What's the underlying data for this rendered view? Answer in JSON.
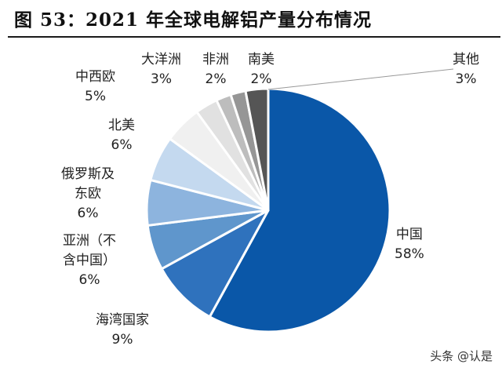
{
  "figure": {
    "title": "图  53：2021 年全球电解铝产量分布情况"
  },
  "chart_data": {
    "type": "pie",
    "slices": [
      {
        "name": "中国",
        "value": 58,
        "label": "58%",
        "color": "#0a57a8"
      },
      {
        "name": "海湾国家",
        "value": 9,
        "label": "9%",
        "color": "#2f72bd"
      },
      {
        "name": "亚洲（不含中国）",
        "value": 6,
        "label": "6%",
        "color": "#5f96cc"
      },
      {
        "name": "俄罗斯及东欧",
        "value": 6,
        "label": "6%",
        "color": "#8db4de"
      },
      {
        "name": "北美",
        "value": 6,
        "label": "6%",
        "color": "#c4d9ef"
      },
      {
        "name": "中西欧",
        "value": 5,
        "label": "5%",
        "color": "#f0f0f0"
      },
      {
        "name": "大洋洲",
        "value": 3,
        "label": "3%",
        "color": "#e1e1e1"
      },
      {
        "name": "非洲",
        "value": 2,
        "label": "2%",
        "color": "#bdbdbd"
      },
      {
        "name": "南美",
        "value": 2,
        "label": "2%",
        "color": "#969696"
      },
      {
        "name": "其他",
        "value": 3,
        "label": "3%",
        "color": "#555555"
      }
    ]
  },
  "labels": {
    "china": {
      "line1": "中国",
      "line2": "58%"
    },
    "gulf": {
      "line1": "海湾国家",
      "line2": "9%"
    },
    "asia": {
      "line1": "亚洲（不",
      "line2": "含中国）",
      "line3": "6%"
    },
    "russia": {
      "line1": "俄罗斯及",
      "line2": "东欧",
      "line3": "6%"
    },
    "north_america": {
      "line1": "北美",
      "line2": "6%"
    },
    "west_europe": {
      "line1": "中西欧",
      "line2": "5%"
    },
    "oceania": {
      "line1": "大洋洲",
      "line2": "3%"
    },
    "africa": {
      "line1": "非洲",
      "line2": "2%"
    },
    "south_america": {
      "line1": "南美",
      "line2": "2%"
    },
    "other": {
      "line1": "其他",
      "line2": "3%"
    }
  },
  "watermark": "头条 @认是"
}
